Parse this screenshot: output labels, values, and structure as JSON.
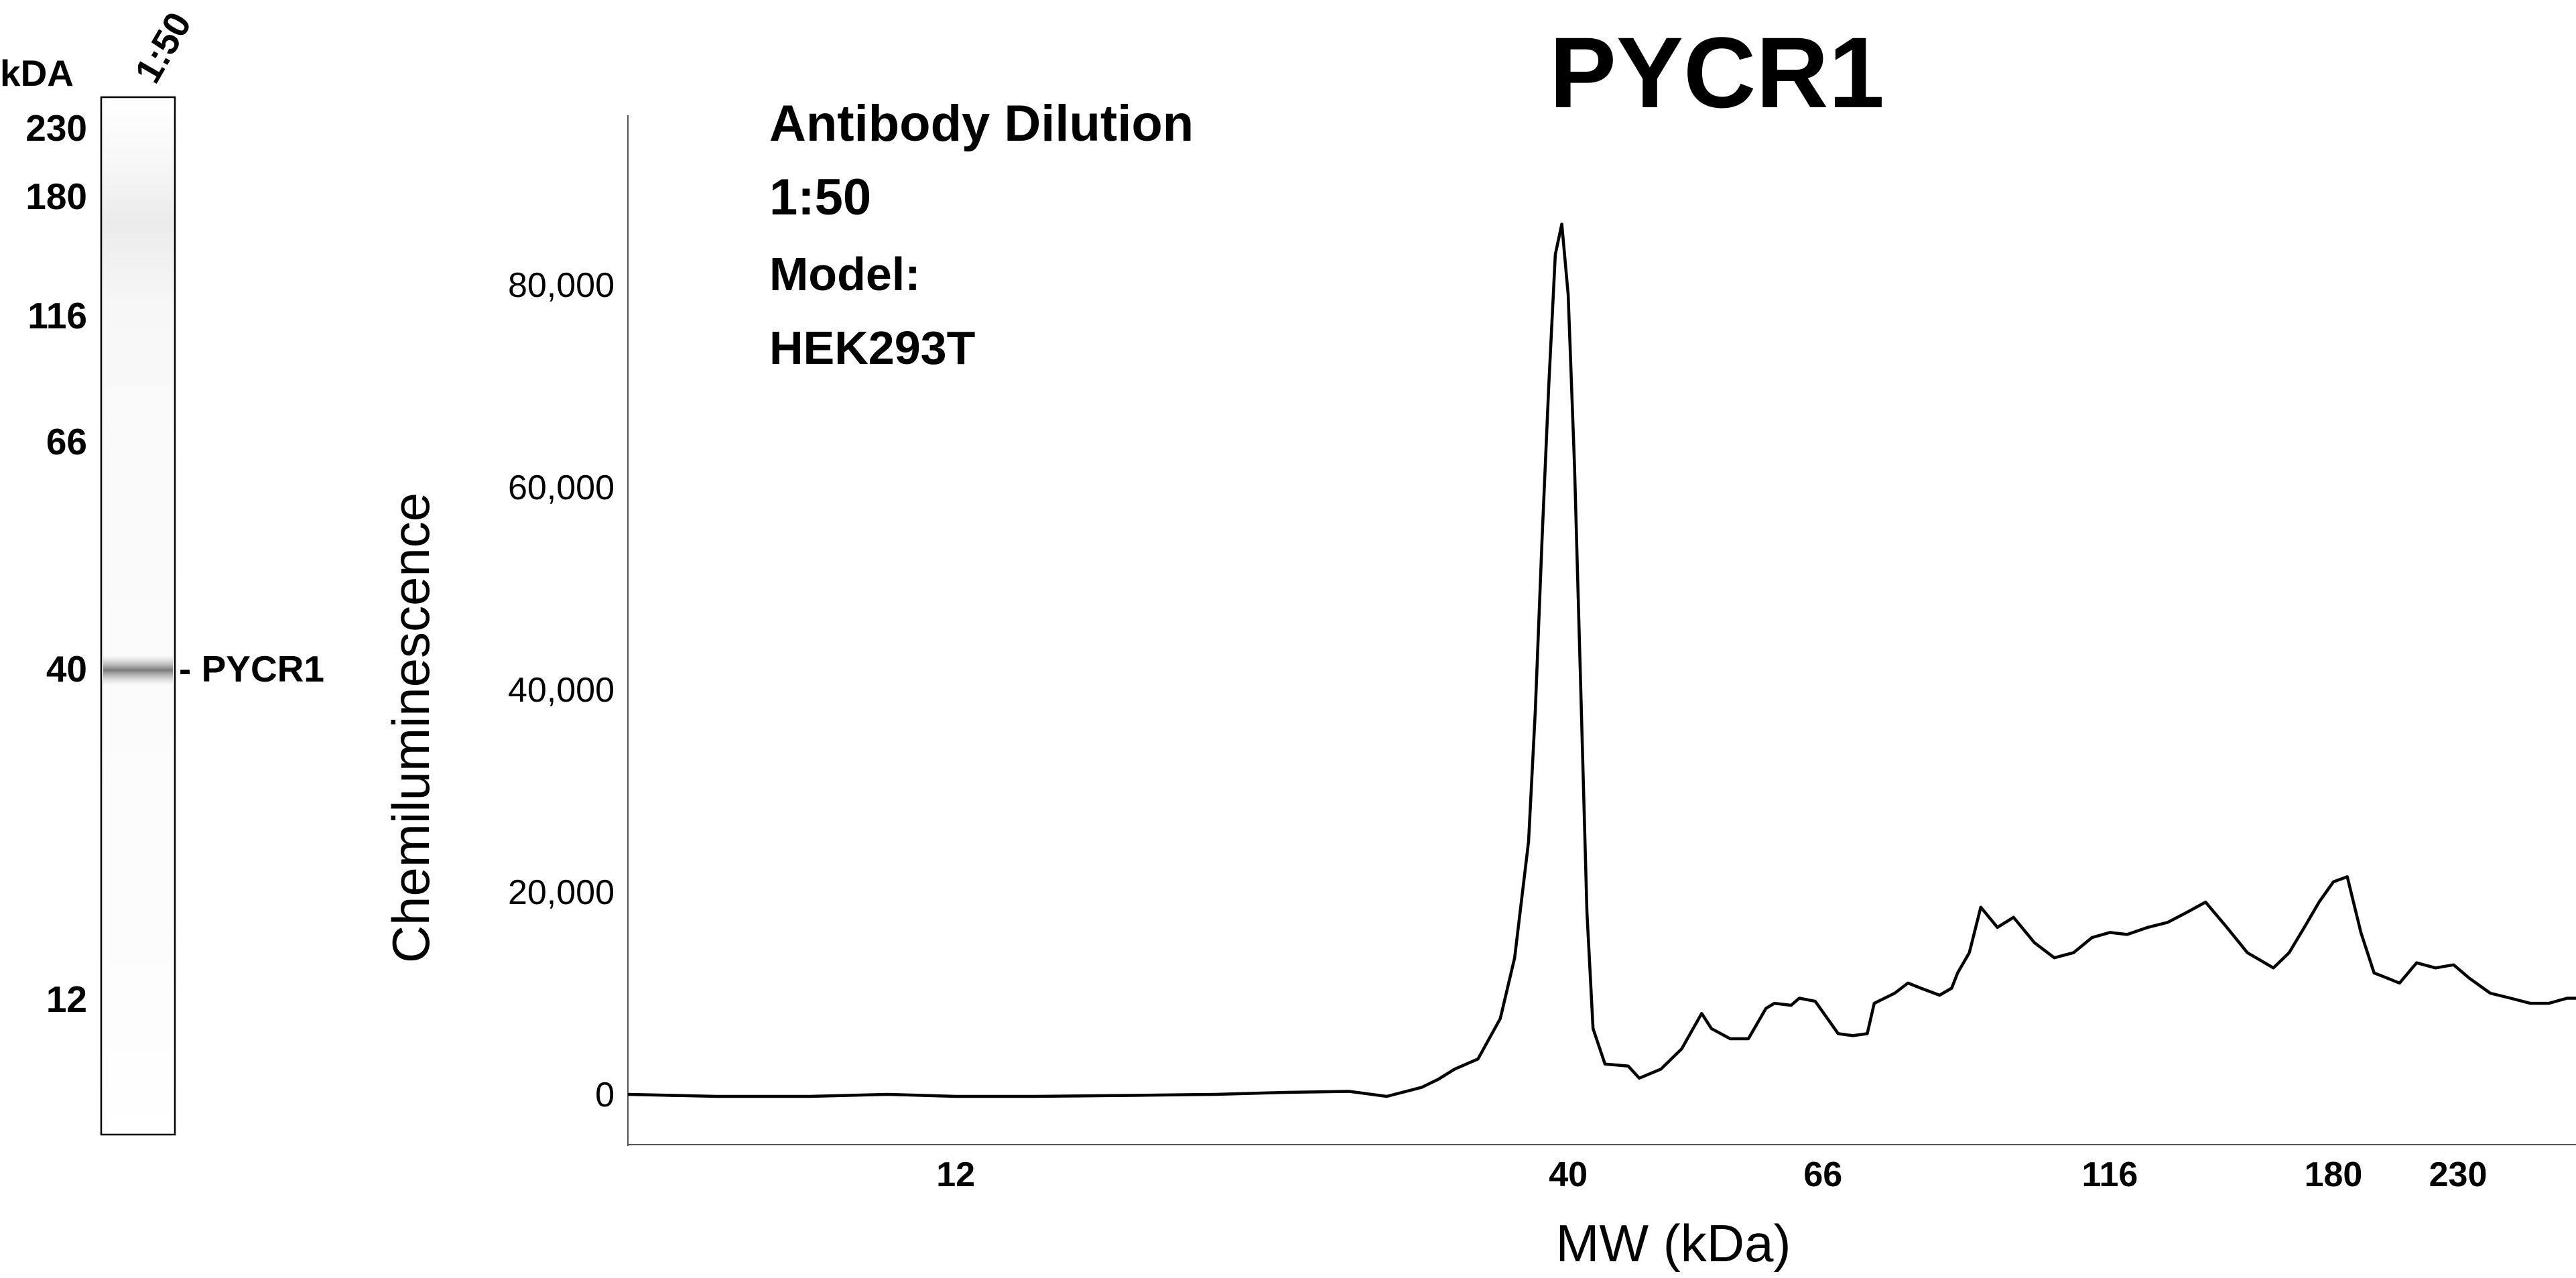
{
  "blot": {
    "kda_label": "kDA",
    "lane_label": "1:50",
    "ticks": [
      "230",
      "180",
      "116",
      "66",
      "40",
      "12"
    ],
    "band_label": "- PYCR1"
  },
  "chart_data": {
    "type": "line",
    "title": "PYCR1",
    "annotation": [
      "Antibody Dilution",
      "1:50",
      "Model:",
      "HEK293T"
    ],
    "xlabel": "MW (kDa)",
    "ylabel": "Chemiluminescence",
    "x_scale": "log",
    "x_ticks": [
      12,
      40,
      66,
      116,
      180,
      230
    ],
    "x_tick_labels": [
      "12",
      "40",
      "66",
      "116",
      "180",
      "230"
    ],
    "xlim": [
      6.3,
      290
    ],
    "y_ticks": [
      0,
      20000,
      40000,
      60000,
      80000
    ],
    "y_tick_labels": [
      "0",
      "20,000",
      "40,000",
      "60,000",
      "80,000"
    ],
    "ylim": [
      -5000,
      95000
    ],
    "grid": false,
    "series": [
      {
        "x": [
          6.3,
          7.5,
          9,
          10.5,
          12,
          14,
          17,
          20,
          23,
          26,
          28,
          30,
          31,
          32,
          33.5,
          35,
          36,
          37,
          37.5,
          38,
          38.5,
          39,
          39.5,
          40,
          40.5,
          41,
          41.5,
          42,
          43,
          45,
          46,
          48,
          50,
          52,
          53,
          55,
          57,
          59,
          60,
          62,
          63,
          65,
          68,
          70,
          72,
          73,
          76,
          78,
          80,
          83,
          85,
          86,
          88,
          90,
          93,
          96,
          100,
          104,
          108,
          112,
          116,
          120,
          125,
          130,
          135,
          140,
          146,
          152,
          160,
          165,
          170,
          175,
          180,
          185,
          190,
          195,
          200,
          205,
          212,
          220,
          228,
          235,
          245,
          255,
          265,
          275,
          285,
          290
        ],
        "y": [
          0,
          -200,
          -200,
          0,
          -200,
          -200,
          -100,
          0,
          200,
          300,
          -200,
          700,
          1500,
          2500,
          3500,
          7500,
          13500,
          25000,
          38000,
          55000,
          70000,
          83000,
          86000,
          79000,
          62000,
          40000,
          18000,
          6500,
          3000,
          2800,
          1600,
          2500,
          4500,
          8000,
          6500,
          5500,
          5500,
          8500,
          9000,
          8800,
          9500,
          9200,
          6000,
          5800,
          6000,
          9000,
          10000,
          11000,
          10500,
          9800,
          10500,
          12000,
          14000,
          18500,
          16500,
          17500,
          15000,
          13500,
          14000,
          15500,
          16000,
          15800,
          16500,
          17000,
          18000,
          19000,
          16500,
          14000,
          12500,
          14000,
          16500,
          19000,
          21000,
          21500,
          16000,
          12000,
          11500,
          11000,
          13000,
          12500,
          12800,
          11500,
          10000,
          9500,
          9000,
          9000,
          9500,
          9500
        ]
      }
    ]
  }
}
